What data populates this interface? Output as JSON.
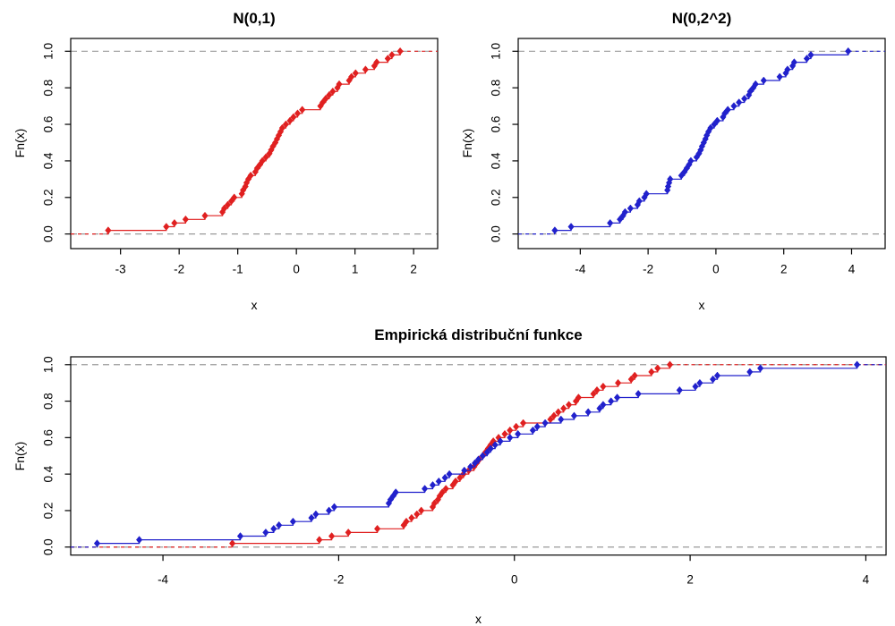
{
  "figure": {
    "background": "#ffffff",
    "colors": {
      "red_series": "#E02020",
      "blue_series": "#2121CC",
      "grid_dashed": "#999999",
      "axis": "#000000",
      "text": "#000000"
    }
  },
  "chart_data": [
    {
      "id": "ecdf-n01",
      "type": "line",
      "subtype": "ecdf-step",
      "title": "N(0,1)",
      "xlabel": "x",
      "ylabel": "Fn(x)",
      "x_ticks": [
        -3,
        -2,
        -1,
        0,
        1,
        2
      ],
      "y_ticks": [
        "0.0",
        "0.2",
        "0.4",
        "0.6",
        "0.8",
        "1.0"
      ],
      "xlim": [
        -3.85,
        2.41
      ],
      "ylim": [
        -0.08,
        1.07
      ],
      "hlines": [
        0,
        1
      ],
      "grid": false,
      "legend": "none",
      "series": [
        {
          "label": "N(0,1)",
          "color_key": "red_series",
          "x_sorted": [
            -3.21,
            -2.22,
            -2.08,
            -1.89,
            -1.56,
            -1.26,
            -1.23,
            -1.17,
            -1.11,
            -1.06,
            -0.93,
            -0.91,
            -0.87,
            -0.85,
            -0.82,
            -0.78,
            -0.7,
            -0.67,
            -0.62,
            -0.58,
            -0.52,
            -0.46,
            -0.43,
            -0.4,
            -0.36,
            -0.33,
            -0.3,
            -0.27,
            -0.24,
            -0.18,
            -0.11,
            -0.05,
            0.02,
            0.1,
            0.41,
            0.45,
            0.5,
            0.56,
            0.62,
            0.7,
            0.73,
            0.9,
            0.94,
            1.01,
            1.18,
            1.33,
            1.37,
            1.56,
            1.63,
            1.77
          ],
          "fn_step": 0.02
        }
      ]
    },
    {
      "id": "ecdf-n02",
      "type": "line",
      "subtype": "ecdf-step",
      "title": "N(0,2^2)",
      "xlabel": "x",
      "ylabel": "Fn(x)",
      "x_ticks": [
        -4,
        -2,
        0,
        2,
        4
      ],
      "y_ticks": [
        "0.0",
        "0.2",
        "0.4",
        "0.6",
        "0.8",
        "1.0"
      ],
      "xlim": [
        -5.83,
        4.99
      ],
      "ylim": [
        -0.08,
        1.07
      ],
      "hlines": [
        0,
        1
      ],
      "grid": false,
      "legend": "none",
      "series": [
        {
          "label": "N(0,2^2)",
          "color_key": "blue_series",
          "x_sorted": [
            -4.75,
            -4.27,
            -3.12,
            -2.83,
            -2.74,
            -2.68,
            -2.52,
            -2.31,
            -2.26,
            -2.11,
            -2.05,
            -1.43,
            -1.41,
            -1.38,
            -1.35,
            -1.02,
            -0.93,
            -0.86,
            -0.79,
            -0.74,
            -0.57,
            -0.5,
            -0.45,
            -0.41,
            -0.36,
            -0.31,
            -0.27,
            -0.22,
            -0.16,
            -0.05,
            0.04,
            0.21,
            0.26,
            0.35,
            0.53,
            0.68,
            0.84,
            0.97,
            1.01,
            1.1,
            1.17,
            1.41,
            1.88,
            2.06,
            2.11,
            2.26,
            2.31,
            2.68,
            2.8,
            3.9
          ],
          "fn_step": 0.02
        }
      ]
    },
    {
      "id": "ecdf-combined",
      "type": "line",
      "subtype": "ecdf-step",
      "title": "Empirická distribuční funkce",
      "xlabel": "x",
      "ylabel": "Fn(x)",
      "x_ticks": [
        -4,
        -2,
        0,
        2,
        4
      ],
      "y_ticks": [
        "0.0",
        "0.2",
        "0.4",
        "0.6",
        "0.8",
        "1.0"
      ],
      "xlim": [
        -5.05,
        4.23
      ],
      "ylim": [
        -0.044,
        1.043
      ],
      "hlines": [
        0,
        1
      ],
      "grid": false,
      "legend": "none",
      "series": [
        {
          "label": "N(0,1)",
          "color_key": "red_series",
          "x_sorted": [
            -3.21,
            -2.22,
            -2.08,
            -1.89,
            -1.56,
            -1.26,
            -1.23,
            -1.17,
            -1.11,
            -1.06,
            -0.93,
            -0.91,
            -0.87,
            -0.85,
            -0.82,
            -0.78,
            -0.7,
            -0.67,
            -0.62,
            -0.58,
            -0.52,
            -0.46,
            -0.43,
            -0.4,
            -0.36,
            -0.33,
            -0.3,
            -0.27,
            -0.24,
            -0.18,
            -0.11,
            -0.05,
            0.02,
            0.1,
            0.41,
            0.45,
            0.5,
            0.56,
            0.62,
            0.7,
            0.73,
            0.9,
            0.94,
            1.01,
            1.18,
            1.33,
            1.37,
            1.56,
            1.63,
            1.77
          ],
          "fn_step": 0.02
        },
        {
          "label": "N(0,2^2)",
          "color_key": "blue_series",
          "x_sorted": [
            -4.75,
            -4.27,
            -3.12,
            -2.83,
            -2.74,
            -2.68,
            -2.52,
            -2.31,
            -2.26,
            -2.11,
            -2.05,
            -1.43,
            -1.41,
            -1.38,
            -1.35,
            -1.02,
            -0.93,
            -0.86,
            -0.79,
            -0.74,
            -0.57,
            -0.5,
            -0.45,
            -0.41,
            -0.36,
            -0.31,
            -0.27,
            -0.22,
            -0.16,
            -0.05,
            0.04,
            0.21,
            0.26,
            0.35,
            0.53,
            0.68,
            0.84,
            0.97,
            1.01,
            1.1,
            1.17,
            1.41,
            1.88,
            2.06,
            2.11,
            2.26,
            2.31,
            2.68,
            2.8,
            3.9
          ],
          "fn_step": 0.02
        }
      ]
    }
  ]
}
